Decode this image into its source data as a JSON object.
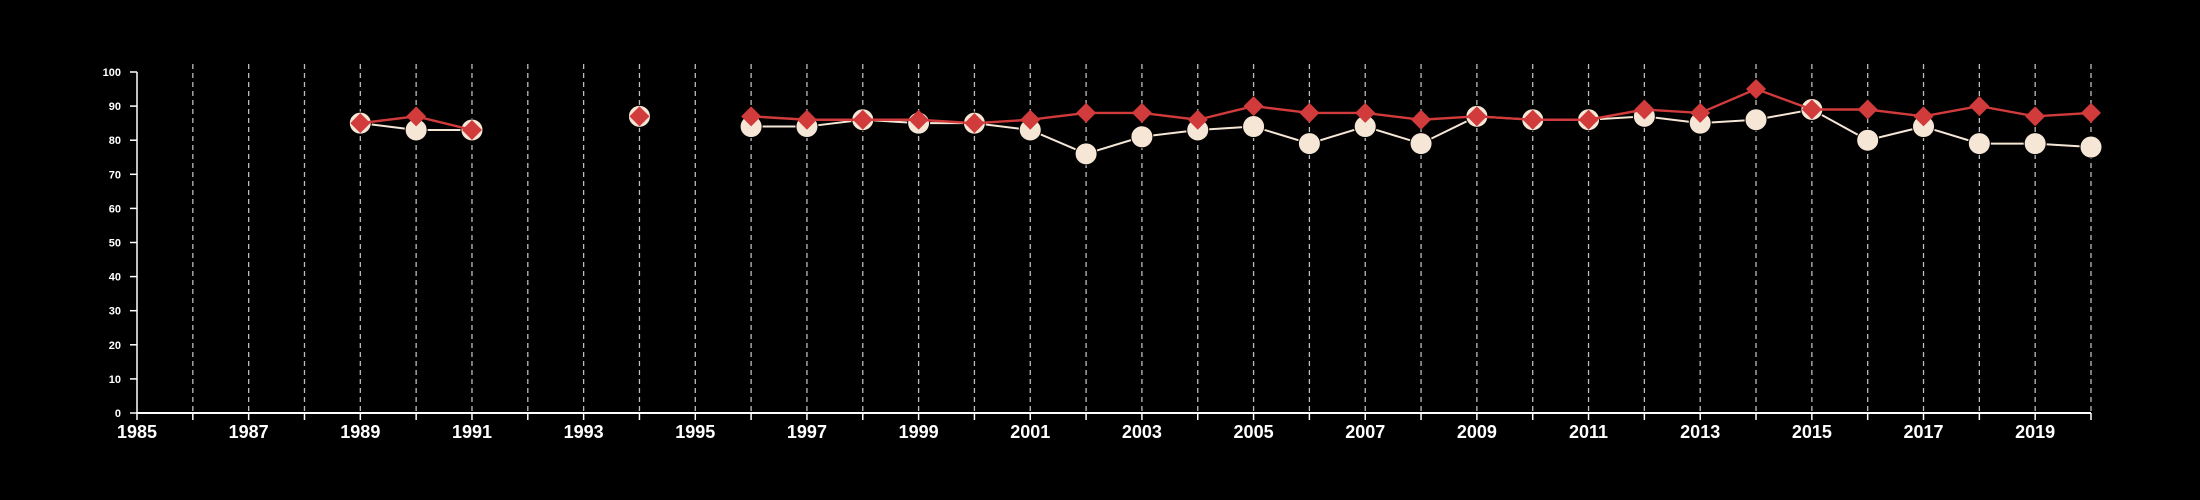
{
  "chart_data": {
    "type": "line",
    "title": "",
    "xlabel": "",
    "ylabel": "",
    "xlim": [
      1985,
      2020
    ],
    "ylim": [
      0,
      100
    ],
    "x_ticks": [
      1985,
      1987,
      1989,
      1991,
      1993,
      1995,
      1997,
      1999,
      2001,
      2003,
      2005,
      2007,
      2009,
      2011,
      2013,
      2015,
      2017,
      2019
    ],
    "y_ticks": [
      0,
      10,
      20,
      30,
      40,
      50,
      60,
      70,
      80,
      90,
      100
    ],
    "grid": "vertical dashed at each year 1986-2020",
    "background": "#000000",
    "series": [
      {
        "color": "#f5e6d6",
        "marker": "circle",
        "points": [
          [
            1989,
            85
          ],
          [
            1990,
            83
          ],
          [
            1991,
            83
          ],
          [
            1994,
            87
          ],
          [
            1996,
            84
          ],
          [
            1997,
            84
          ],
          [
            1998,
            86
          ],
          [
            1999,
            85
          ],
          [
            2000,
            85
          ],
          [
            2001,
            83
          ],
          [
            2002,
            76
          ],
          [
            2003,
            81
          ],
          [
            2004,
            83
          ],
          [
            2005,
            84
          ],
          [
            2006,
            79
          ],
          [
            2007,
            84
          ],
          [
            2008,
            79
          ],
          [
            2009,
            87
          ],
          [
            2010,
            86
          ],
          [
            2011,
            86
          ],
          [
            2012,
            87
          ],
          [
            2013,
            85
          ],
          [
            2014,
            86
          ],
          [
            2015,
            89
          ],
          [
            2016,
            80
          ],
          [
            2017,
            84
          ],
          [
            2018,
            79
          ],
          [
            2019,
            79
          ],
          [
            2020,
            78
          ]
        ]
      },
      {
        "color": "#d13b3b",
        "marker": "diamond",
        "points": [
          [
            1989,
            85
          ],
          [
            1990,
            87
          ],
          [
            1991,
            83
          ],
          [
            1994,
            87
          ],
          [
            1996,
            87
          ],
          [
            1997,
            86
          ],
          [
            1998,
            86
          ],
          [
            1999,
            86
          ],
          [
            2000,
            85
          ],
          [
            2001,
            86
          ],
          [
            2002,
            88
          ],
          [
            2003,
            88
          ],
          [
            2004,
            86
          ],
          [
            2005,
            90
          ],
          [
            2006,
            88
          ],
          [
            2007,
            88
          ],
          [
            2008,
            86
          ],
          [
            2009,
            87
          ],
          [
            2010,
            86
          ],
          [
            2011,
            86
          ],
          [
            2012,
            89
          ],
          [
            2013,
            88
          ],
          [
            2014,
            95
          ],
          [
            2015,
            89
          ],
          [
            2016,
            89
          ],
          [
            2017,
            87
          ],
          [
            2018,
            90
          ],
          [
            2019,
            87
          ],
          [
            2020,
            88
          ]
        ]
      }
    ]
  }
}
